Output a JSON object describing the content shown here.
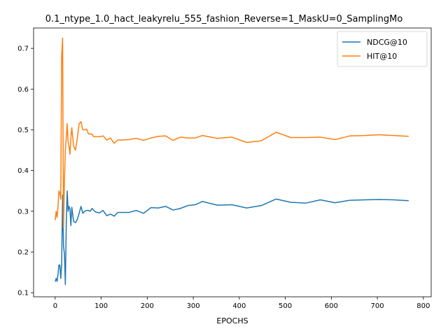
{
  "chart_data": {
    "type": "line",
    "title": "0.1_ntype_1.0_hact_leakyrelu_555_fashion_Reverse=1_MaskU=0_SamplingMo",
    "xlabel": "EPOCHS",
    "ylabel": "",
    "xlim": [
      -47,
      817
    ],
    "ylim": [
      0.09,
      0.75
    ],
    "xticks": [
      0,
      100,
      200,
      300,
      400,
      500,
      600,
      700,
      800
    ],
    "yticks": [
      0.1,
      0.2,
      0.3,
      0.4,
      0.5,
      0.6,
      0.7
    ],
    "legend_position": "top-right",
    "grid": false,
    "series": [
      {
        "name": "NDCG@10",
        "color": "#1f77b4",
        "x": [
          0,
          2,
          4,
          6,
          8,
          10,
          12,
          14,
          16,
          18,
          20,
          22,
          24,
          26,
          28,
          30,
          32,
          34,
          36,
          40,
          44,
          48,
          52,
          56,
          60,
          64,
          68,
          72,
          76,
          80,
          84,
          88,
          96,
          104,
          112,
          120,
          128,
          136,
          144,
          160,
          176,
          192,
          208,
          224,
          240,
          256,
          272,
          288,
          304,
          320,
          352,
          384,
          416,
          448,
          480,
          512,
          544,
          576,
          608,
          640,
          672,
          704,
          736,
          768
        ],
        "y": [
          0.127,
          0.135,
          0.128,
          0.145,
          0.168,
          0.168,
          0.135,
          0.17,
          0.34,
          0.215,
          0.195,
          0.12,
          0.27,
          0.35,
          0.3,
          0.312,
          0.305,
          0.265,
          0.31,
          0.275,
          0.272,
          0.28,
          0.295,
          0.312,
          0.295,
          0.3,
          0.302,
          0.302,
          0.3,
          0.307,
          0.302,
          0.298,
          0.296,
          0.302,
          0.289,
          0.293,
          0.288,
          0.297,
          0.297,
          0.297,
          0.302,
          0.295,
          0.309,
          0.308,
          0.312,
          0.303,
          0.307,
          0.314,
          0.316,
          0.324,
          0.315,
          0.316,
          0.308,
          0.314,
          0.33,
          0.322,
          0.32,
          0.328,
          0.321,
          0.327,
          0.328,
          0.329,
          0.328,
          0.326
        ]
      },
      {
        "name": "HIT@10",
        "color": "#ff7f0e",
        "x": [
          0,
          2,
          4,
          6,
          8,
          10,
          12,
          14,
          16,
          18,
          20,
          22,
          24,
          26,
          28,
          30,
          32,
          34,
          36,
          40,
          44,
          48,
          52,
          56,
          60,
          64,
          68,
          72,
          76,
          80,
          84,
          88,
          96,
          104,
          112,
          120,
          128,
          136,
          144,
          160,
          176,
          192,
          208,
          224,
          240,
          256,
          272,
          288,
          304,
          320,
          352,
          384,
          416,
          448,
          480,
          512,
          544,
          576,
          608,
          640,
          672,
          704,
          736,
          768
        ],
        "y": [
          0.278,
          0.3,
          0.285,
          0.31,
          0.35,
          0.345,
          0.33,
          0.68,
          0.725,
          0.26,
          0.375,
          0.45,
          0.48,
          0.515,
          0.47,
          0.46,
          0.44,
          0.48,
          0.505,
          0.46,
          0.45,
          0.48,
          0.515,
          0.52,
          0.5,
          0.5,
          0.502,
          0.49,
          0.49,
          0.489,
          0.483,
          0.483,
          0.483,
          0.485,
          0.475,
          0.48,
          0.467,
          0.475,
          0.475,
          0.476,
          0.479,
          0.474,
          0.48,
          0.484,
          0.485,
          0.474,
          0.482,
          0.48,
          0.48,
          0.486,
          0.479,
          0.482,
          0.469,
          0.473,
          0.494,
          0.481,
          0.481,
          0.482,
          0.476,
          0.485,
          0.486,
          0.488,
          0.486,
          0.484
        ]
      }
    ]
  }
}
